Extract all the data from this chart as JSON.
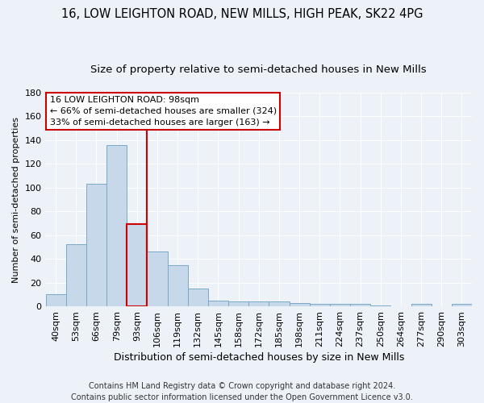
{
  "title1": "16, LOW LEIGHTON ROAD, NEW MILLS, HIGH PEAK, SK22 4PG",
  "title2": "Size of property relative to semi-detached houses in New Mills",
  "xlabel": "Distribution of semi-detached houses by size in New Mills",
  "ylabel": "Number of semi-detached properties",
  "categories": [
    "40sqm",
    "53sqm",
    "66sqm",
    "79sqm",
    "93sqm",
    "106sqm",
    "119sqm",
    "132sqm",
    "145sqm",
    "158sqm",
    "172sqm",
    "185sqm",
    "198sqm",
    "211sqm",
    "224sqm",
    "237sqm",
    "250sqm",
    "264sqm",
    "277sqm",
    "290sqm",
    "303sqm"
  ],
  "values": [
    10,
    52,
    103,
    136,
    69,
    46,
    35,
    15,
    5,
    4,
    4,
    4,
    3,
    2,
    2,
    2,
    1,
    0,
    2,
    0,
    2
  ],
  "bar_color": "#c8d8eb",
  "bar_edge_color": "#7aaac8",
  "highlight_bar_index": 4,
  "highlight_bar_edge_color": "#cc0000",
  "vline_x": 4.5,
  "annotation_line1": "16 LOW LEIGHTON ROAD: 98sqm",
  "annotation_line2": "← 66% of semi-detached houses are smaller (324)",
  "annotation_line3": "33% of semi-detached houses are larger (163) →",
  "annotation_box_color": "#ffffff",
  "annotation_box_edge_color": "#cc0000",
  "ylim": [
    0,
    180
  ],
  "yticks": [
    0,
    20,
    40,
    60,
    80,
    100,
    120,
    140,
    160,
    180
  ],
  "background_color": "#edf2f9",
  "grid_color": "#ffffff",
  "footer_line1": "Contains HM Land Registry data © Crown copyright and database right 2024.",
  "footer_line2": "Contains public sector information licensed under the Open Government Licence v3.0.",
  "title1_fontsize": 10.5,
  "title2_fontsize": 9.5,
  "xlabel_fontsize": 9,
  "ylabel_fontsize": 8,
  "tick_fontsize": 8,
  "annotation_fontsize": 8,
  "footer_fontsize": 7
}
